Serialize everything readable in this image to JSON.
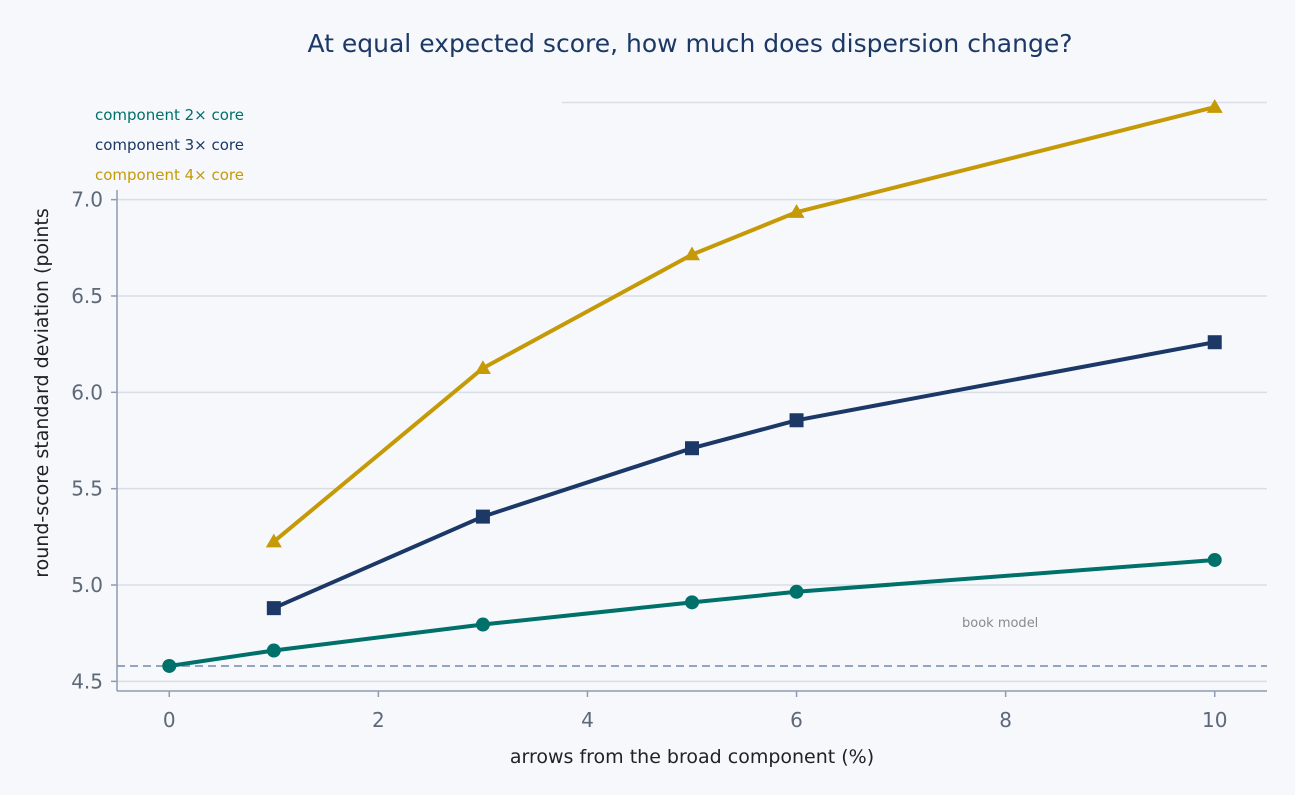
{
  "chart_data": {
    "type": "line",
    "title": "At equal expected score, how much does dispersion change?",
    "xlabel": "arrows from the broad component (%)",
    "ylabel": "round-score standard deviation (points",
    "xlim": [
      -0.5,
      10.5
    ],
    "ylim": [
      4.45,
      7.05
    ],
    "xticks": [
      0,
      2,
      4,
      6,
      8,
      10
    ],
    "yticks": [
      4.5,
      5.0,
      5.5,
      6.0,
      6.5,
      7.0
    ],
    "grid": "horizontal",
    "legend_position": "top-left",
    "series": [
      {
        "name": "component 2× core",
        "color": "#00706a",
        "marker": "circle",
        "x": [
          0,
          1,
          3,
          5,
          6,
          10
        ],
        "y": [
          4.58,
          4.66,
          4.795,
          4.91,
          4.965,
          5.13
        ]
      },
      {
        "name": "component 3× core",
        "color": "#1b3866",
        "marker": "square",
        "x": [
          1,
          3,
          5,
          6,
          10
        ],
        "y": [
          4.88,
          5.355,
          5.71,
          5.855,
          6.26
        ]
      },
      {
        "name": "component 4× core",
        "color": "#c59a06",
        "marker": "triangle",
        "x": [
          1,
          3,
          5,
          6,
          10
        ],
        "y": [
          5.225,
          6.125,
          6.715,
          6.935,
          7.48
        ]
      }
    ],
    "reference_line": {
      "y": 4.58,
      "label": "book model",
      "style": "dashed",
      "color": "#94a6bf"
    }
  },
  "colors": {
    "background": "#f6f8fb",
    "title": "#1b3866",
    "axis": "#8f9bb0",
    "grid": "#d9dee6",
    "tick_label": "#5d6879",
    "axis_label": "#222222",
    "annotation": "#8a8a8a"
  }
}
